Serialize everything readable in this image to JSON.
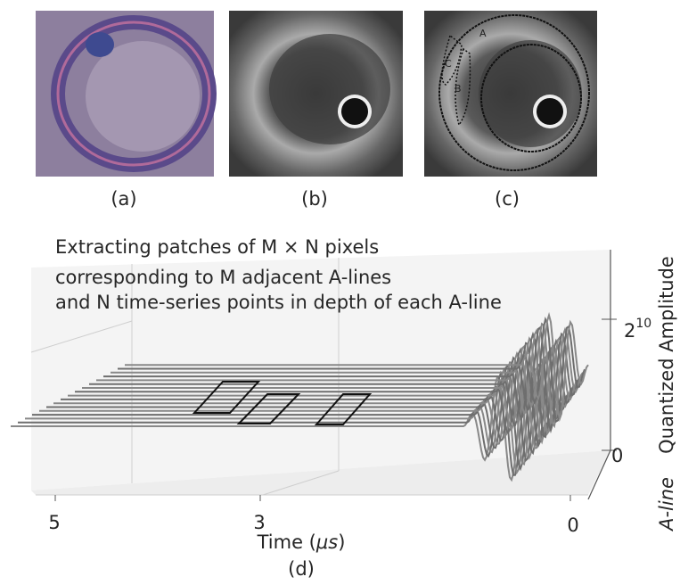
{
  "panels": [
    {
      "label": "(a)"
    },
    {
      "label": "(b)"
    },
    {
      "label": "(c)",
      "annotations": [
        "A",
        "B",
        "C"
      ]
    }
  ],
  "plot": {
    "annotation": [
      "Extracting patches of M × N pixels",
      "corresponding to M adjacent A-lines",
      "and N time-series points in depth of each A-line"
    ],
    "time_ticks": [
      "5",
      "3",
      "0"
    ],
    "amplitude_ticks": [
      {
        "label": "0"
      },
      {
        "base": "2",
        "exponent": "10"
      }
    ],
    "time_label": {
      "text": "Time (",
      "unit": "μs",
      "close": ")"
    },
    "aline_label": "A-line",
    "amplitude_label": "Quantized Amplitude",
    "label": "(d)"
  }
}
